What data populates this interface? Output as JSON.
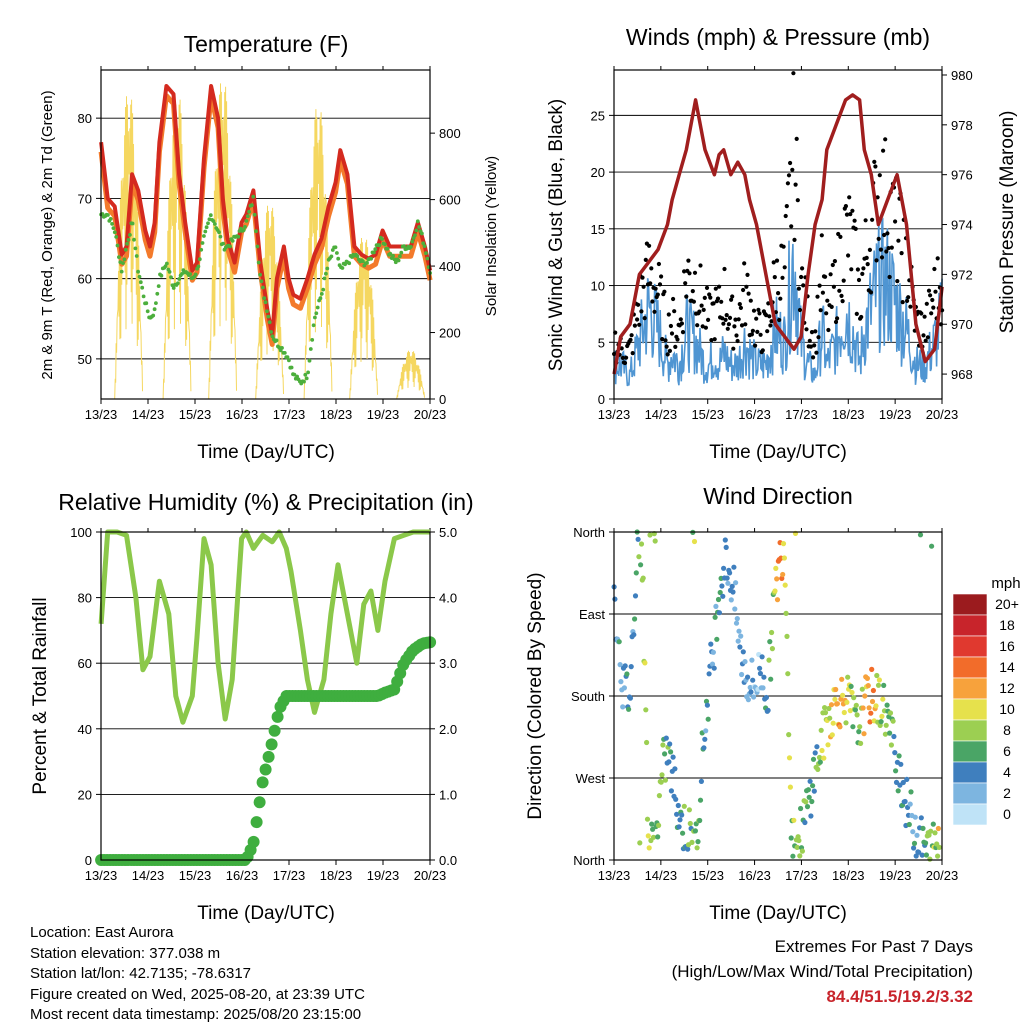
{
  "panels": {
    "temperature": {
      "title": "Temperature (F)",
      "ylabel_left": "2m & 9m T (Red, Orange) & 2m Td (Green)",
      "ylabel_right": "Solar Insolation (Yellow)",
      "xlabel": "Time (Day/UTC)",
      "left_ticks": [
        "50",
        "60",
        "70",
        "80"
      ],
      "right_ticks": [
        "0",
        "200",
        "400",
        "600",
        "800"
      ]
    },
    "winds": {
      "title": "Winds (mph) & Pressure (mb)",
      "ylabel_left": "Sonic Wind & Gust (Blue, Black)",
      "ylabel_right": "Station Pressure (Maroon)",
      "xlabel": "Time (Day/UTC)",
      "left_ticks": [
        "0",
        "5",
        "10",
        "15",
        "20",
        "25"
      ],
      "right_ticks": [
        "968",
        "970",
        "972",
        "974",
        "976",
        "978",
        "980"
      ]
    },
    "humidity": {
      "title": "Relative Humidity (%) & Precipitation (in)",
      "ylabel_left": "Percent & Total Rainfall",
      "xlabel": "Time (Day/UTC)",
      "left_ticks": [
        "0",
        "20",
        "40",
        "60",
        "80",
        "100"
      ],
      "right_ticks": [
        "0.0",
        "1.0",
        "2.0",
        "3.0",
        "4.0",
        "5.0"
      ]
    },
    "direction": {
      "title": "Wind Direction",
      "ylabel_left": "Direction (Colored By Speed)",
      "xlabel": "Time (Day/UTC)",
      "left_ticks": [
        "North",
        "East",
        "South",
        "West",
        "North"
      ],
      "colorbar_title": "mph",
      "colorbar_labels": [
        "20+",
        "18",
        "16",
        "14",
        "12",
        "10",
        "8",
        "6",
        "4",
        "2",
        "0"
      ],
      "colorbar_colors": [
        "#9b1b1e",
        "#c8242b",
        "#e0392f",
        "#f26c2a",
        "#f7a23c",
        "#e6e14c",
        "#9ccf52",
        "#4aa566",
        "#3f7fbe",
        "#7db5e0",
        "#bfe3f7"
      ]
    }
  },
  "x_ticks": [
    "13/23",
    "14/23",
    "15/23",
    "16/23",
    "17/23",
    "18/23",
    "19/23",
    "20/23"
  ],
  "info": {
    "location": "Location: East Aurora",
    "elevation": "Station elevation: 377.038 m",
    "latlon": "Station lat/lon: 42.7135; -78.6317",
    "created": "Figure created on Wed, 2025-08-20, at 23:39 UTC",
    "recent": "Most recent data timestamp: 2025/08/20 23:15:00"
  },
  "extremes": {
    "title": "Extremes For Past 7 Days",
    "subtitle": "(High/Low/Max Wind/Total Precipitation)",
    "values": "84.4/51.5/19.2/3.32"
  },
  "colors": {
    "temp_2m": "#d42a1f",
    "temp_9m": "#f37a2b",
    "dewpoint": "#4caf3c",
    "solar": "#f5d760",
    "wind": "#4f95d2",
    "gust": "#000000",
    "pressure": "#a01e1e",
    "rh": "#8bc84a",
    "precip": "#3fae3f"
  },
  "chart_data": [
    {
      "type": "line",
      "title": "Temperature (F)",
      "xlabel": "Time (Day/UTC)",
      "ylabel": "2m & 9m T (Red, Orange) & 2m Td (Green)",
      "ylabel_right": "Solar Insolation (Yellow)",
      "xlim": [
        13.958,
        20.958
      ],
      "ylim": [
        45,
        86
      ],
      "ylim_right": [
        0,
        990
      ],
      "x": [
        13.96,
        14.1,
        14.25,
        14.4,
        14.5,
        14.62,
        14.75,
        14.9,
        15.0,
        15.1,
        15.2,
        15.35,
        15.5,
        15.62,
        15.75,
        15.9,
        16.0,
        16.15,
        16.3,
        16.45,
        16.55,
        16.65,
        16.8,
        16.95,
        17.05,
        17.2,
        17.35,
        17.5,
        17.6,
        17.7,
        17.85,
        17.95,
        18.05,
        18.2,
        18.35,
        18.5,
        18.65,
        18.8,
        18.95,
        19.05,
        19.2,
        19.35,
        19.5,
        19.65,
        19.8,
        19.95,
        20.1,
        20.25,
        20.4,
        20.55,
        20.7,
        20.85,
        20.96
      ],
      "series": [
        {
          "name": "2m & 9m T (Red, Orange)",
          "values": [
            77,
            70,
            69,
            63,
            64,
            73,
            71,
            66,
            64,
            67,
            77,
            84,
            83,
            73,
            67,
            61,
            62,
            75,
            84,
            80,
            70,
            65,
            62,
            67,
            68,
            71,
            62,
            56,
            53,
            60,
            64,
            60,
            58,
            57.5,
            60,
            63,
            65,
            69,
            72,
            76,
            73,
            64,
            63,
            62.5,
            63,
            66,
            64,
            64,
            64,
            64,
            67,
            64,
            61
          ]
        },
        {
          "name": "2m Td (Green)",
          "values": [
            68,
            68,
            66,
            61,
            64,
            67,
            61,
            57,
            55,
            56,
            60,
            62,
            59,
            60,
            61,
            60,
            61,
            65,
            68,
            66,
            64,
            64,
            65,
            66,
            67,
            70,
            60,
            56,
            53,
            52,
            51,
            50,
            48,
            47,
            48,
            55,
            58,
            62,
            64,
            61,
            62,
            63,
            62,
            62,
            64,
            65,
            63,
            62,
            64,
            64,
            67,
            64,
            61
          ]
        }
      ],
      "solar_insolation": {
        "peaks_day": [
          14.55,
          15.58,
          16.55,
          17.55,
          18.58,
          19.55,
          20.55
        ],
        "peaks_wm2": [
          940,
          940,
          980,
          600,
          900,
          500,
          150
        ]
      }
    },
    {
      "type": "line",
      "title": "Winds (mph) & Pressure (mb)",
      "xlabel": "Time (Day/UTC)",
      "ylabel": "Sonic Wind & Gust (Blue, Black)",
      "ylabel_right": "Station Pressure (Maroon)",
      "xlim": [
        13.958,
        20.958
      ],
      "ylim": [
        0,
        29
      ],
      "ylim_right": [
        967,
        980.2
      ],
      "x": [
        13.96,
        14.1,
        14.3,
        14.5,
        14.7,
        14.9,
        15.1,
        15.2,
        15.35,
        15.5,
        15.7,
        15.9,
        16.0,
        16.1,
        16.2,
        16.3,
        16.45,
        16.6,
        16.75,
        16.85,
        17.0,
        17.2,
        17.4,
        17.6,
        17.8,
        17.95,
        18.1,
        18.25,
        18.4,
        18.5,
        18.7,
        18.9,
        19.05,
        19.2,
        19.3,
        19.45,
        19.6,
        19.8,
        20.0,
        20.2,
        20.4,
        20.6,
        20.8,
        20.96
      ],
      "series": [
        {
          "name": "Station Pressure (Maroon)",
          "values": [
            968,
            969.5,
            970,
            972,
            972.5,
            973,
            974,
            975,
            976,
            977,
            979,
            977,
            976.5,
            976,
            976.8,
            977,
            976,
            976.5,
            976,
            975,
            974,
            972,
            970,
            969.5,
            969,
            969.5,
            972,
            974,
            975,
            977,
            978,
            979,
            979.2,
            979,
            977,
            976,
            974,
            975,
            976,
            974,
            970,
            968.5,
            969,
            971.5
          ]
        },
        {
          "name": "Sonic Wind (Blue)",
          "values": [
            3,
            3,
            2,
            5,
            8,
            6,
            3,
            4,
            3,
            6,
            5,
            3,
            3,
            4,
            3,
            4,
            3,
            3,
            5,
            4,
            3,
            3,
            6,
            5,
            13,
            5,
            3,
            2,
            6,
            3,
            5,
            8,
            6,
            3,
            6,
            8,
            10,
            10,
            8,
            6,
            3,
            3,
            5,
            7
          ]
        },
        {
          "name": "Gust (Black)",
          "values": [
            6,
            5,
            5,
            10,
            13,
            11,
            7,
            8,
            7,
            13,
            12,
            9,
            8,
            9,
            9,
            11,
            8,
            8,
            11,
            10,
            7,
            7,
            12,
            13,
            26,
            12,
            8,
            6,
            13,
            8,
            12,
            17,
            16,
            10,
            14,
            17,
            22,
            20,
            17,
            14,
            8,
            7,
            11,
            12
          ]
        }
      ]
    },
    {
      "type": "line",
      "title": "Relative Humidity (%) & Precipitation (in)",
      "xlabel": "Time (Day/UTC)",
      "ylabel": "Percent & Total Rainfall",
      "xlim": [
        13.958,
        20.958
      ],
      "ylim": [
        0,
        100
      ],
      "ylim_right": [
        0,
        5.0
      ],
      "x": [
        13.96,
        14.1,
        14.3,
        14.5,
        14.7,
        14.85,
        15.0,
        15.2,
        15.4,
        15.55,
        15.7,
        15.9,
        16.0,
        16.15,
        16.3,
        16.45,
        16.6,
        16.75,
        16.95,
        17.05,
        17.2,
        17.4,
        17.6,
        17.75,
        17.9,
        18.0,
        18.2,
        18.35,
        18.5,
        18.7,
        18.85,
        19.0,
        19.2,
        19.4,
        19.55,
        19.7,
        19.85,
        20.0,
        20.2,
        20.4,
        20.6,
        20.8,
        20.96
      ],
      "series": [
        {
          "name": "Relative Humidity",
          "values": [
            72,
            100,
            100,
            99,
            80,
            58,
            62,
            85,
            75,
            50,
            42,
            50,
            68,
            98,
            90,
            60,
            43,
            55,
            98,
            100,
            95,
            99,
            97,
            100,
            95,
            88,
            70,
            55,
            45,
            55,
            75,
            90,
            75,
            60,
            78,
            82,
            70,
            85,
            98,
            99,
            100,
            100,
            100
          ]
        },
        {
          "name": "Total Rainfall (in)",
          "values": [
            0,
            0,
            0,
            0,
            0,
            0,
            0,
            0,
            0,
            0,
            0,
            0,
            0,
            0,
            0,
            0,
            0,
            0,
            0,
            0,
            0.25,
            1.2,
            1.8,
            2.3,
            2.5,
            2.5,
            2.5,
            2.5,
            2.5,
            2.5,
            2.5,
            2.5,
            2.5,
            2.5,
            2.5,
            2.5,
            2.5,
            2.55,
            2.6,
            3.0,
            3.2,
            3.3,
            3.32
          ]
        }
      ]
    },
    {
      "type": "scatter",
      "title": "Wind Direction",
      "xlabel": "Time (Day/UTC)",
      "ylabel": "Direction (Colored By Speed)",
      "xlim": [
        13.958,
        20.958
      ],
      "ylim": [
        0,
        360
      ],
      "colorbar": {
        "title": "mph",
        "min": 0,
        "max": 20
      },
      "x": [
        13.96,
        14.05,
        14.15,
        14.3,
        14.45,
        14.55,
        14.7,
        14.85,
        15.0,
        15.1,
        15.25,
        15.4,
        15.55,
        15.7,
        15.85,
        16.0,
        16.1,
        16.2,
        16.35,
        16.5,
        16.65,
        16.8,
        16.95,
        17.1,
        17.25,
        17.35,
        17.5,
        17.6,
        17.75,
        17.9,
        18.0,
        18.1,
        18.2,
        18.35,
        18.5,
        18.65,
        18.8,
        18.9,
        19.05,
        19.15,
        19.3,
        19.45,
        19.6,
        19.75,
        19.9,
        20.05,
        20.2,
        20.35,
        20.5,
        20.65,
        20.8,
        20.9
      ],
      "series": [
        {
          "name": "Wind Direction",
          "values": [
            280,
            250,
            190,
            180,
            350,
            355,
            10,
            20,
            100,
            120,
            80,
            40,
            30,
            10,
            120,
            200,
            240,
            300,
            330,
            300,
            230,
            200,
            190,
            210,
            180,
            270,
            330,
            350,
            30,
            20,
            40,
            60,
            90,
            120,
            150,
            170,
            175,
            180,
            160,
            140,
            170,
            180,
            175,
            165,
            130,
            100,
            60,
            40,
            20,
            10,
            15,
            20
          ],
          "speeds": [
            4,
            3,
            4,
            3,
            6,
            7,
            8,
            7,
            7,
            6,
            5,
            5,
            6,
            8,
            5,
            4,
            4,
            5,
            5,
            3,
            3,
            3,
            2,
            2,
            6,
            8,
            15,
            9,
            8,
            7,
            6,
            5,
            5,
            8,
            9,
            11,
            12,
            10,
            8,
            7,
            11,
            13,
            9,
            7,
            6,
            5,
            4,
            4,
            5,
            6,
            8,
            10
          ]
        }
      ]
    }
  ]
}
